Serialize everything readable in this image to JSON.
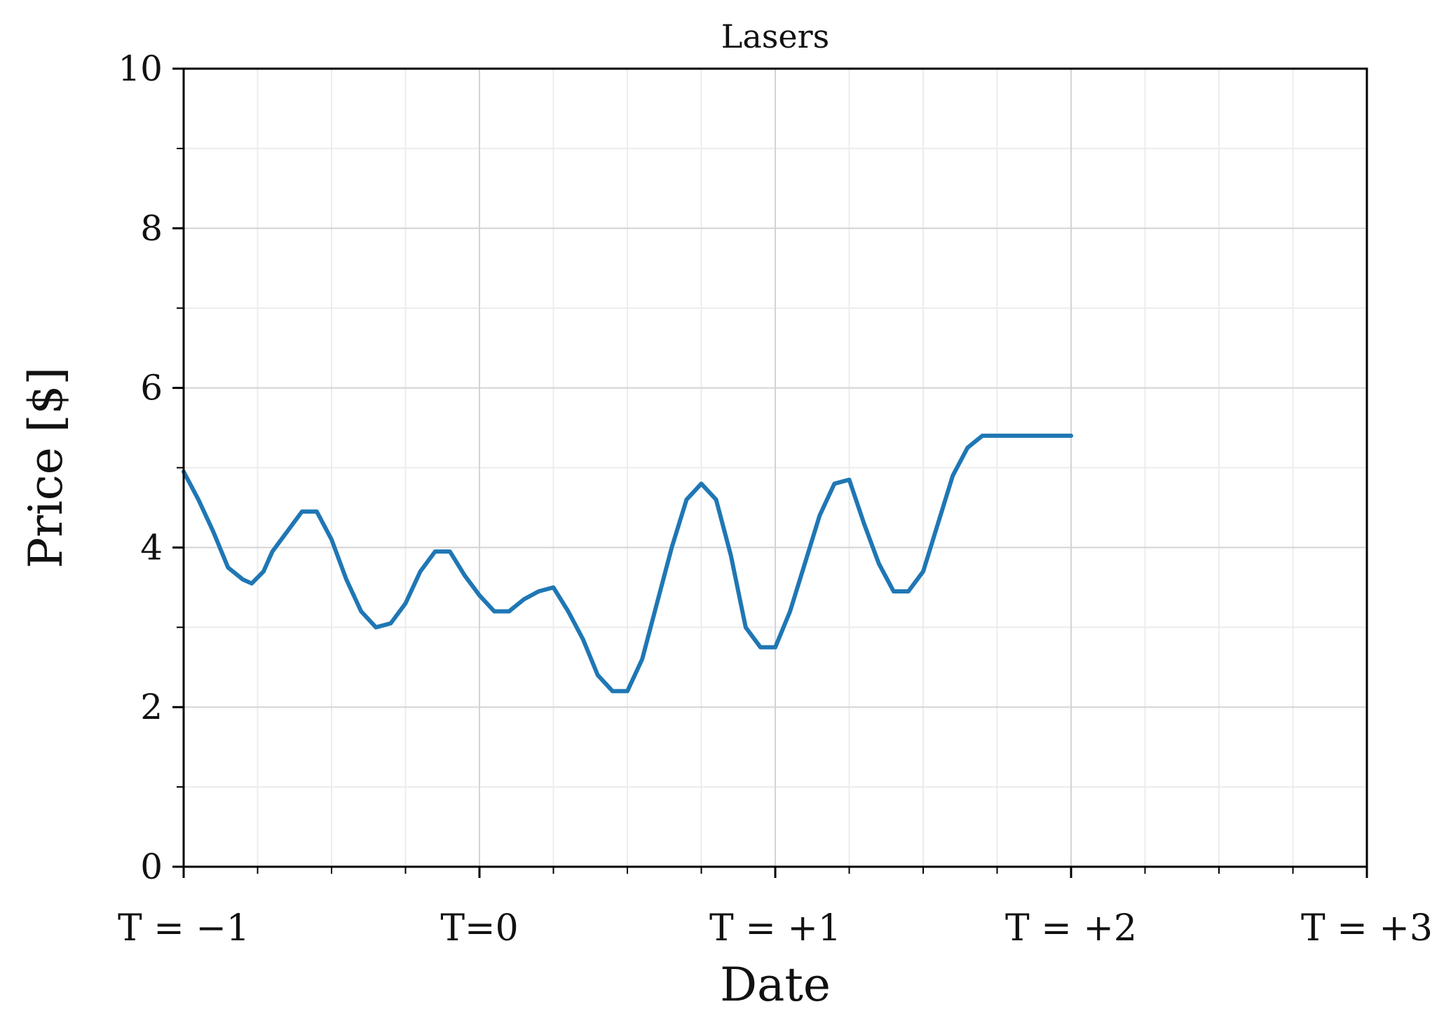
{
  "chart_data": {
    "type": "line",
    "title": "Lasers",
    "xlabel": "Date",
    "ylabel": "Price [$]",
    "xlim": [
      -1,
      3
    ],
    "ylim": [
      0,
      10
    ],
    "x_major_ticks": [
      -1,
      0,
      1,
      2,
      3
    ],
    "x_tick_labels": [
      "T = −1",
      "T=0",
      "T = +1",
      "T = +2",
      "T = +3"
    ],
    "y_major_ticks": [
      0,
      2,
      4,
      6,
      8,
      10
    ],
    "y_tick_labels": [
      "0",
      "2",
      "4",
      "6",
      "8",
      "10"
    ],
    "grid": true,
    "legend": "none",
    "colors": {
      "series": "#1f77b4",
      "major_grid": "#d4d4d4",
      "minor_grid": "#ececec",
      "axis": "#000000"
    },
    "series": [
      {
        "color": "#1f77b4",
        "x": [
          -1.0,
          -0.95,
          -0.9,
          -0.85,
          -0.8,
          -0.77,
          -0.73,
          -0.7,
          -0.65,
          -0.6,
          -0.55,
          -0.5,
          -0.45,
          -0.4,
          -0.35,
          -0.3,
          -0.25,
          -0.2,
          -0.15,
          -0.1,
          -0.05,
          0.0,
          0.05,
          0.1,
          0.15,
          0.2,
          0.25,
          0.3,
          0.35,
          0.4,
          0.45,
          0.5,
          0.55,
          0.6,
          0.65,
          0.7,
          0.75,
          0.8,
          0.85,
          0.9,
          0.95,
          1.0,
          1.05,
          1.1,
          1.15,
          1.2,
          1.25,
          1.3,
          1.35,
          1.4,
          1.45,
          1.5,
          1.55,
          1.6,
          1.65,
          1.7,
          1.75,
          1.8,
          1.85,
          1.9,
          1.95,
          2.0
        ],
        "y": [
          4.95,
          4.6,
          4.2,
          3.75,
          3.6,
          3.55,
          3.7,
          3.95,
          4.2,
          4.45,
          4.45,
          4.1,
          3.6,
          3.2,
          3.0,
          3.05,
          3.3,
          3.7,
          3.95,
          3.95,
          3.65,
          3.4,
          3.2,
          3.2,
          3.35,
          3.45,
          3.5,
          3.2,
          2.85,
          2.4,
          2.2,
          2.2,
          2.6,
          3.3,
          4.0,
          4.6,
          4.8,
          4.6,
          3.9,
          3.0,
          2.75,
          2.75,
          3.2,
          3.8,
          4.4,
          4.8,
          4.85,
          4.3,
          3.8,
          3.45,
          3.45,
          3.7,
          4.3,
          4.9,
          5.25,
          5.4,
          5.4,
          5.4,
          5.4,
          5.4,
          5.4,
          5.4
        ]
      }
    ]
  }
}
